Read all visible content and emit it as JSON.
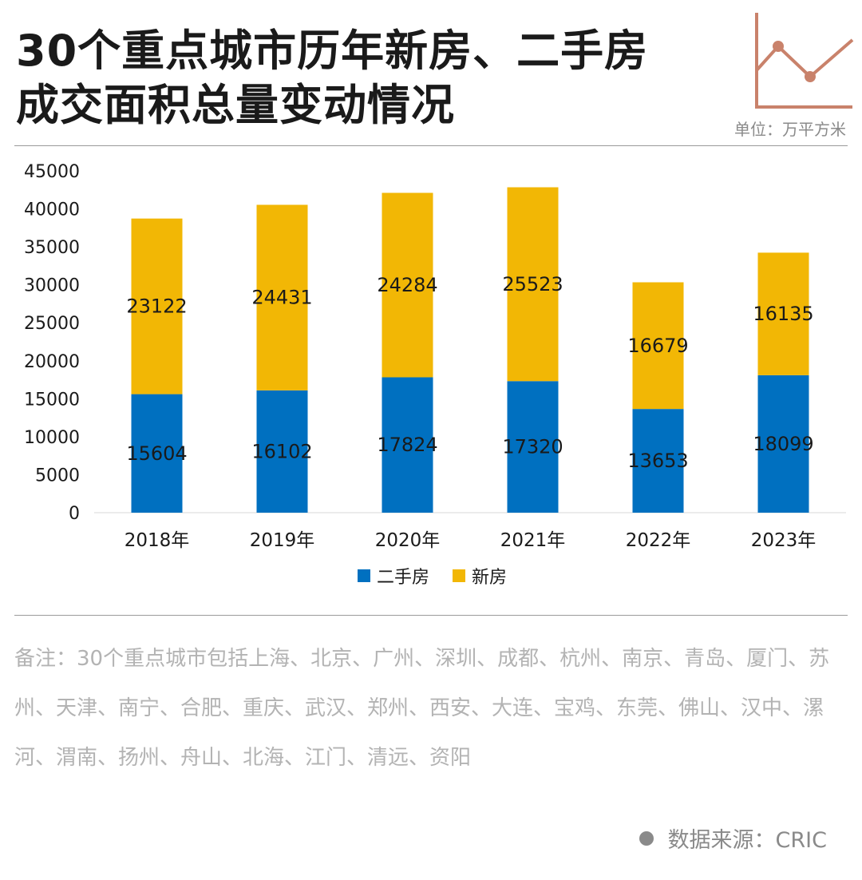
{
  "header": {
    "title_line1": "30个重点城市历年新房、二手房",
    "title_line2": "成交面积总量变动情况",
    "unit": "单位：万平方米"
  },
  "colors": {
    "second_hand": "#0070C0",
    "new_house": "#F2B705",
    "accent": "#C9826B"
  },
  "chart_data": {
    "type": "bar",
    "stacked": true,
    "categories": [
      "2018年",
      "2019年",
      "2020年",
      "2021年",
      "2022年",
      "2023年"
    ],
    "series": [
      {
        "name": "二手房",
        "values": [
          15604,
          16102,
          17824,
          17320,
          13653,
          18099
        ]
      },
      {
        "name": "新房",
        "values": [
          23122,
          24431,
          24284,
          25523,
          16679,
          16135
        ]
      }
    ],
    "ylim": [
      0,
      45000
    ],
    "yticks": [
      "0",
      "5000",
      "10000",
      "15000",
      "20000",
      "25000",
      "30000",
      "35000",
      "40000",
      "45000"
    ],
    "legend": "bottom-center",
    "title": "",
    "xlabel": "",
    "ylabel": ""
  },
  "footer": {
    "note": "备注：30个重点城市包括上海、北京、广州、深圳、成都、杭州、南京、青岛、厦门、苏州、天津、南宁、合肥、重庆、武汉、郑州、西安、大连、宝鸡、东莞、佛山、汉中、漯河、渭南、扬州、舟山、北海、江门、清远、资阳",
    "source": "数据来源：CRIC"
  }
}
